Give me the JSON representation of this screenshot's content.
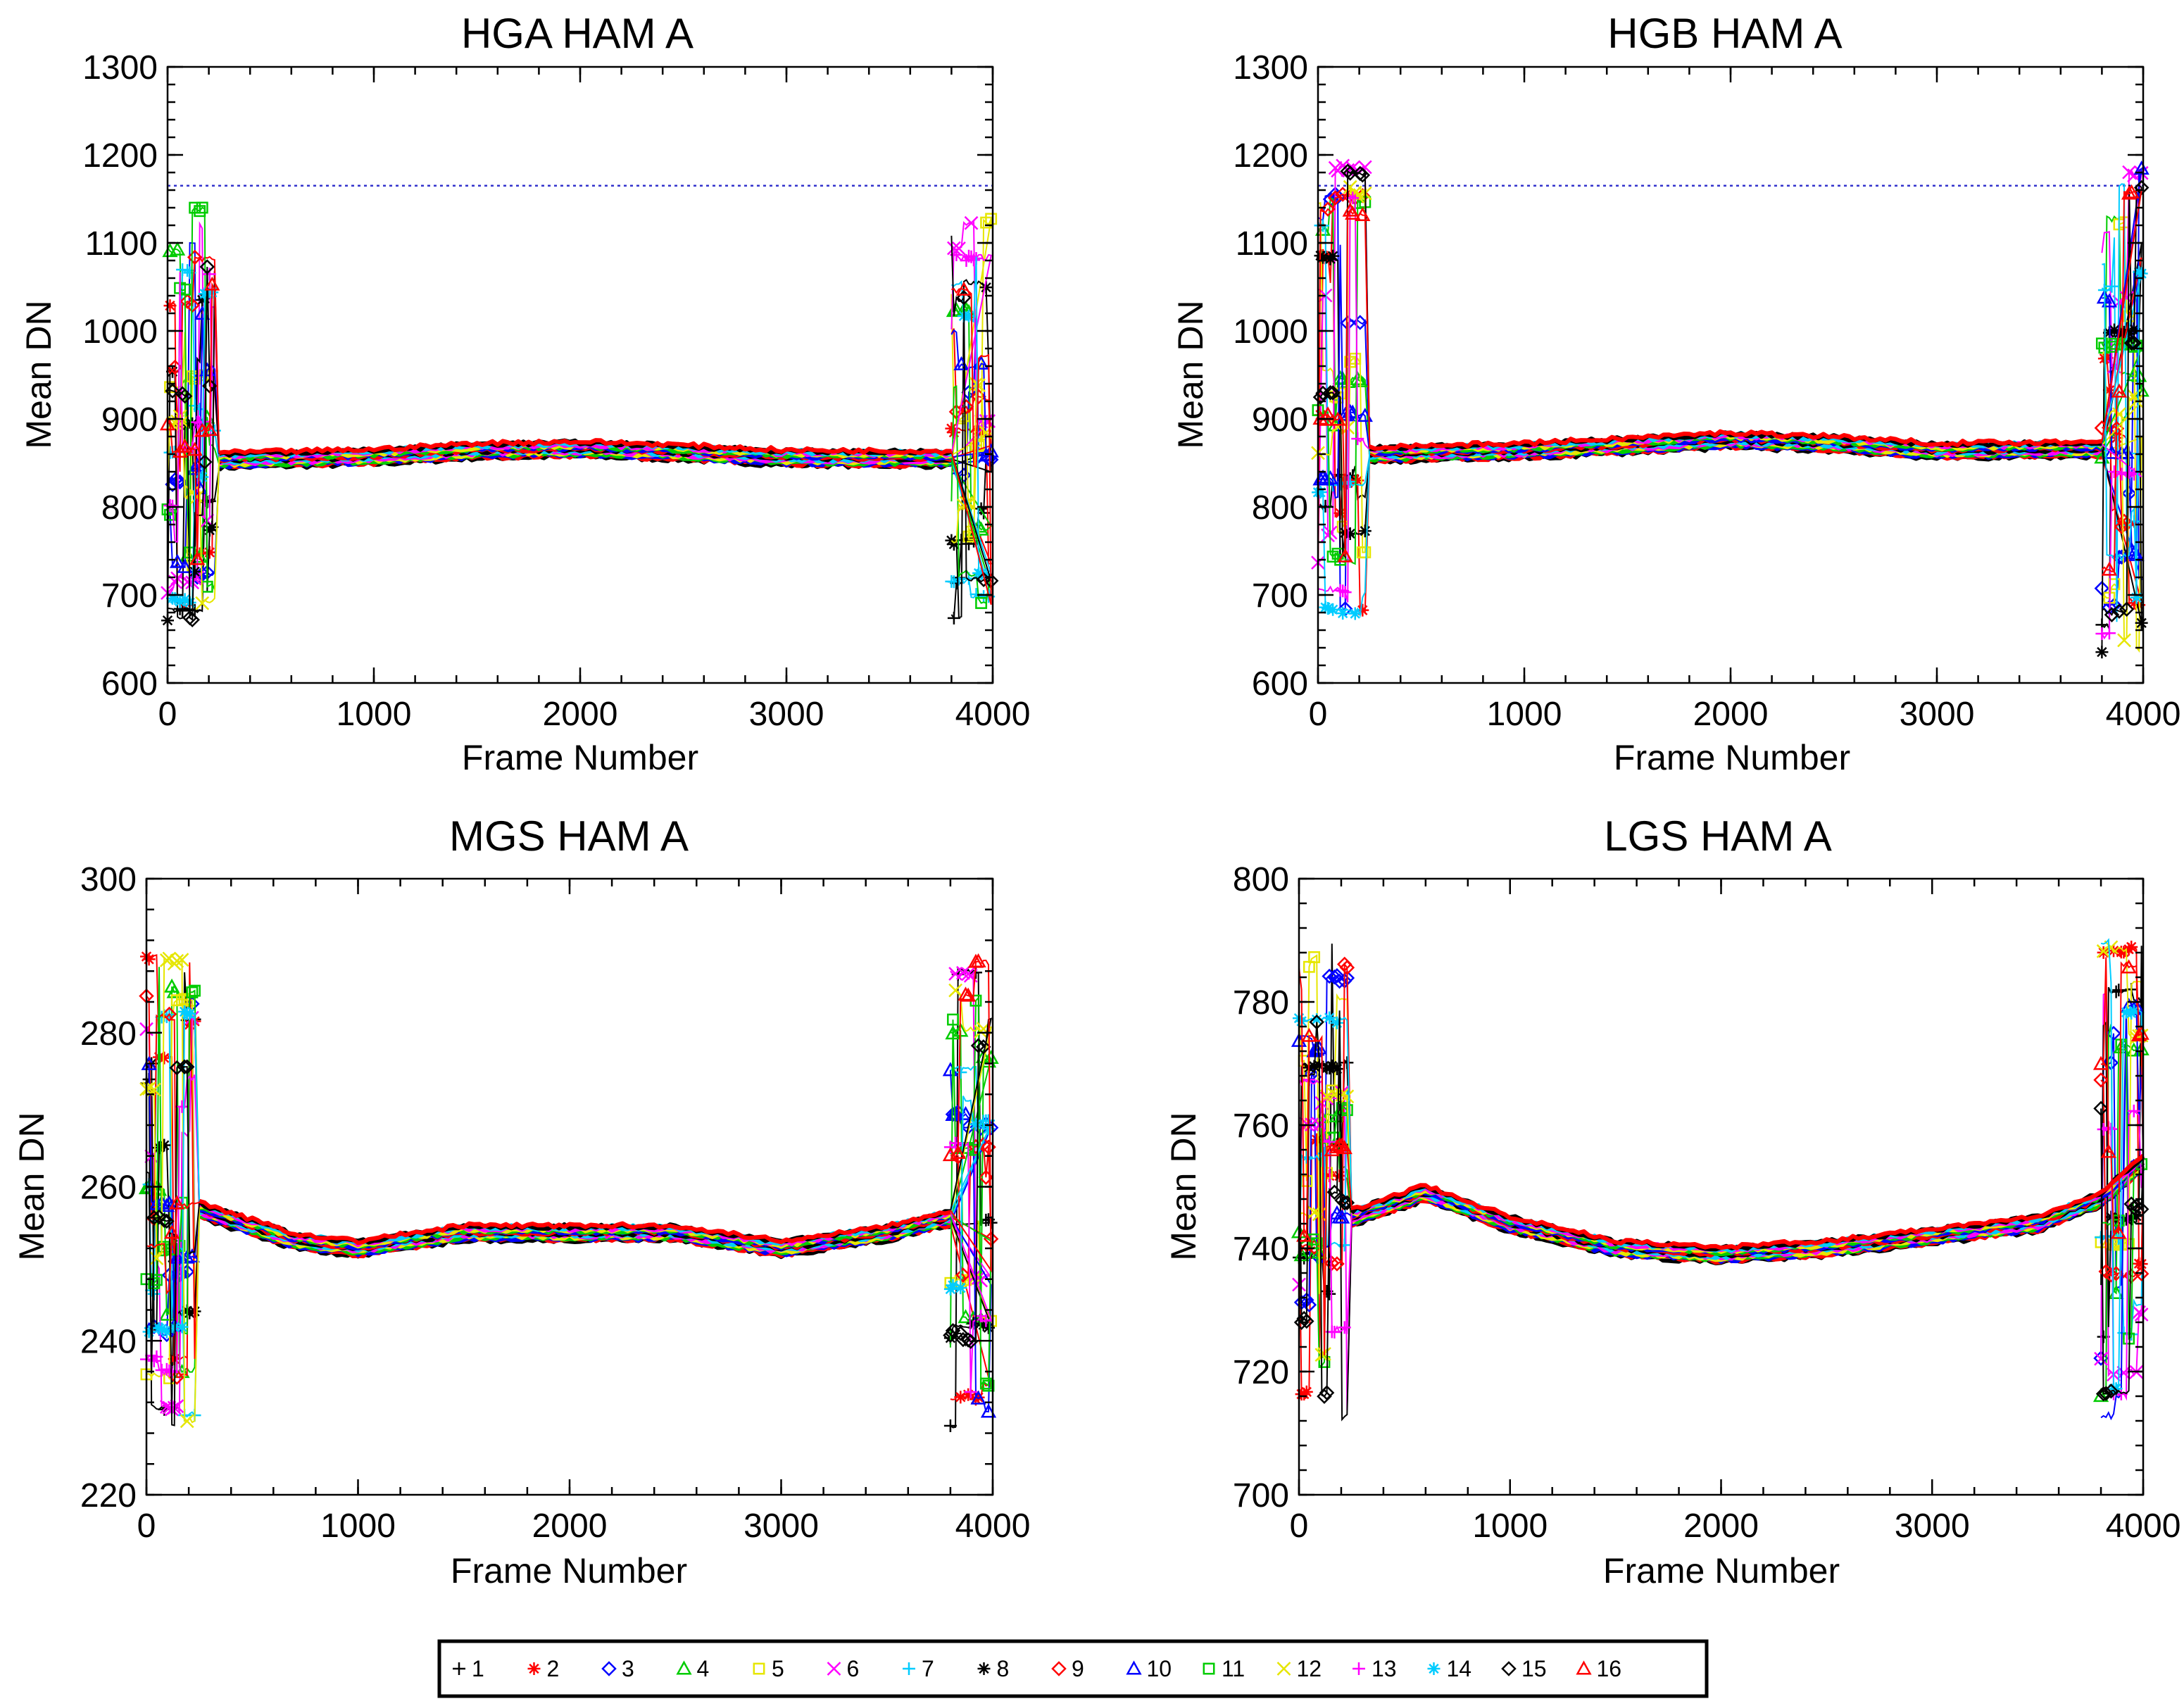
{
  "chart_data": [
    {
      "type": "line",
      "title": "HGA HAM A",
      "xlabel": "Frame Number",
      "ylabel": "Mean DN",
      "xlim": [
        0,
        4000
      ],
      "ylim": [
        600,
        1300
      ],
      "xticks": [
        0,
        1000,
        2000,
        3000,
        4000
      ],
      "yticks": [
        600,
        700,
        800,
        900,
        1000,
        1100,
        1200,
        1300
      ],
      "reference_line": 1165,
      "baseline": {
        "x": [
          250,
          1000,
          1500,
          2000,
          2500,
          3000,
          3800
        ],
        "y": [
          853,
          857,
          864,
          866,
          862,
          856,
          855
        ]
      },
      "edge_ranges": {
        "left_x": [
          0,
          230
        ],
        "right_x": [
          3800,
          4000
        ],
        "min": 665,
        "max": 1140
      }
    },
    {
      "type": "line",
      "title": "HGB HAM A",
      "xlabel": "Frame Number",
      "ylabel": "Mean DN",
      "xlim": [
        0,
        4000
      ],
      "ylim": [
        600,
        1300
      ],
      "xticks": [
        0,
        1000,
        2000,
        3000,
        4000
      ],
      "yticks": [
        600,
        700,
        800,
        900,
        1000,
        1100,
        1200,
        1300
      ],
      "reference_line": 1165,
      "baseline": {
        "x": [
          250,
          1000,
          1500,
          2000,
          2500,
          3000,
          3800
        ],
        "y": [
          860,
          864,
          870,
          876,
          872,
          864,
          866
        ]
      },
      "edge_ranges": {
        "left_x": [
          0,
          230
        ],
        "right_x": [
          3800,
          4000
        ],
        "min": 635,
        "max": 1185
      }
    },
    {
      "type": "line",
      "title": "MGS HAM A",
      "xlabel": "Frame Number",
      "ylabel": "Mean DN",
      "xlim": [
        0,
        4000
      ],
      "ylim": [
        220,
        300
      ],
      "xticks": [
        0,
        1000,
        2000,
        3000,
        4000
      ],
      "yticks": [
        220,
        240,
        260,
        280,
        300
      ],
      "reference_line": null,
      "baseline": {
        "x": [
          250,
          700,
          1000,
          1500,
          2000,
          2500,
          3000,
          3500,
          3800
        ],
        "y": [
          257,
          253,
          252,
          254,
          254,
          254,
          252,
          254,
          256
        ]
      },
      "edge_ranges": {
        "left_x": [
          0,
          230
        ],
        "right_x": [
          3800,
          4000
        ],
        "min": 229,
        "max": 290
      }
    },
    {
      "type": "line",
      "title": "LGS HAM A",
      "xlabel": "Frame Number",
      "ylabel": "Mean DN",
      "xlim": [
        0,
        4000
      ],
      "ylim": [
        700,
        800
      ],
      "xticks": [
        0,
        1000,
        2000,
        3000,
        4000
      ],
      "yticks": [
        700,
        720,
        740,
        760,
        780,
        800
      ],
      "reference_line": null,
      "baseline": {
        "x": [
          250,
          600,
          1000,
          1500,
          2000,
          2500,
          3000,
          3500,
          3800,
          4000
        ],
        "y": [
          745,
          749,
          744,
          740,
          739,
          740,
          742,
          744,
          748,
          754
        ]
      },
      "edge_ranges": {
        "left_x": [
          0,
          230
        ],
        "right_x": [
          3800,
          4000
        ],
        "min": 712,
        "max": 790
      }
    }
  ],
  "legend": {
    "entries": [
      {
        "label": "1",
        "marker": "+",
        "color": "#000000"
      },
      {
        "label": "2",
        "marker": "✶",
        "color": "#ff0000"
      },
      {
        "label": "3",
        "marker": "◇",
        "color": "#0000ff"
      },
      {
        "label": "4",
        "marker": "△",
        "color": "#00cc00"
      },
      {
        "label": "5",
        "marker": "□",
        "color": "#e6e600"
      },
      {
        "label": "6",
        "marker": "×",
        "color": "#ff00ff"
      },
      {
        "label": "7",
        "marker": "+",
        "color": "#00ccff"
      },
      {
        "label": "8",
        "marker": "✳",
        "color": "#000000"
      },
      {
        "label": "9",
        "marker": "◇",
        "color": "#ff0000"
      },
      {
        "label": "10",
        "marker": "△",
        "color": "#0000ff"
      },
      {
        "label": "11",
        "marker": "□",
        "color": "#00cc00"
      },
      {
        "label": "12",
        "marker": "×",
        "color": "#e6e600"
      },
      {
        "label": "13",
        "marker": "+",
        "color": "#ff00ff"
      },
      {
        "label": "14",
        "marker": "✳",
        "color": "#00ccff"
      },
      {
        "label": "15",
        "marker": "◇",
        "color": "#000000"
      },
      {
        "label": "16",
        "marker": "△",
        "color": "#ff0000"
      }
    ]
  },
  "colors": {
    "reference_line": "#3333cc"
  }
}
